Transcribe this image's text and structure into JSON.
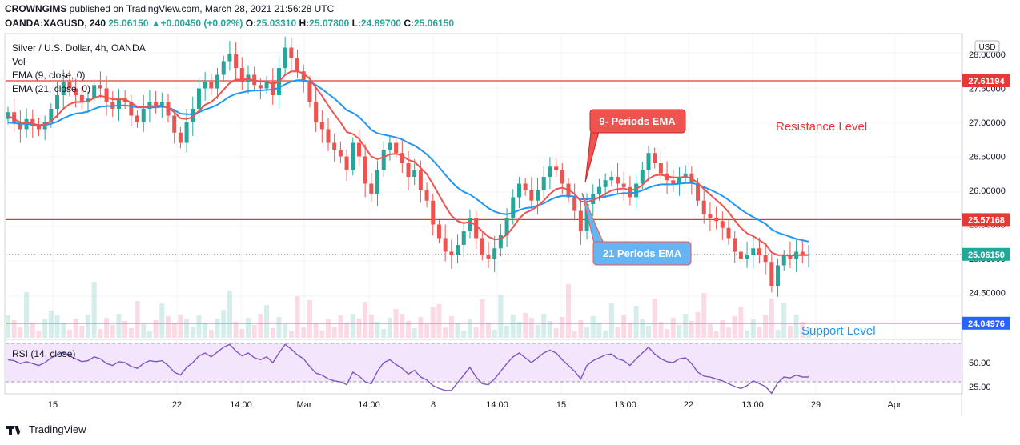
{
  "header": {
    "publisher": "CROWNGIMS",
    "published_text": "published on TradingView.com, March 28, 2021 21:56:28 UTC",
    "symbol": "OANDA:XAGUSD, 240",
    "last": "25.06150",
    "change": "▲+0.00450 (+0.02%)",
    "o_label": "O:",
    "o": "25.03310",
    "h_label": "H:",
    "h": "25.07800",
    "l_label": "L:",
    "l": "24.89700",
    "c_label": "C:",
    "c": "25.06150"
  },
  "legend": {
    "title": "Silver / U.S. Dollar, 4h, OANDA",
    "vol": "Vol",
    "ema9": "EMA (9, close, 0)",
    "ema21": "EMA (21, close, 0)",
    "rsi": "RSI (14, close)"
  },
  "annotations": {
    "ema9_box": "9- Periods EMA",
    "ema21_box": "21 Periods EMA",
    "resistance": "Resistance Level",
    "support": "Support Level"
  },
  "price_badges": {
    "currency": "USD",
    "r1": "27.61194",
    "r2": "25.57168",
    "last": "25.06150",
    "s1": "24.04976"
  },
  "footer": {
    "brand": "TradingView"
  },
  "colors": {
    "bull": "#26a69a",
    "bear": "#ef5350",
    "ema9": "#ef5350",
    "ema21": "#2196f3",
    "level": "#e53935",
    "support": "#2962ff",
    "rsi": "#7e57c2",
    "rsi_band": "#f3e5fb"
  },
  "chart_data": {
    "type": "candlestick",
    "title": "Silver / U.S. Dollar, 4h, OANDA",
    "y_ticks": [
      "28.00000",
      "27.50000",
      "27.00000",
      "26.50000",
      "26.00000",
      "25.50000",
      "25.00000",
      "24.50000"
    ],
    "ylim": [
      24.0,
      28.2
    ],
    "x_ticks": [
      "15",
      "22",
      "14:00",
      "Mar",
      "14:00",
      "8",
      "14:00",
      "15",
      "13:00",
      "22",
      "13:00",
      "29",
      "Apr"
    ],
    "levels": {
      "resistance": [
        27.61194,
        25.57168
      ],
      "support": 24.04976,
      "last": 25.0615
    },
    "close": [
      27.15,
      27.0,
      26.9,
      27.05,
      26.95,
      26.9,
      27.0,
      27.2,
      27.4,
      27.6,
      27.5,
      27.4,
      27.3,
      27.35,
      27.55,
      27.5,
      27.3,
      27.2,
      27.35,
      27.3,
      27.1,
      27.0,
      27.2,
      27.3,
      27.25,
      27.3,
      27.1,
      26.85,
      26.7,
      27.0,
      27.2,
      27.5,
      27.6,
      27.5,
      27.7,
      27.9,
      28.0,
      27.8,
      27.6,
      27.7,
      27.55,
      27.5,
      27.6,
      27.4,
      27.8,
      28.1,
      27.95,
      27.75,
      27.6,
      27.3,
      27.0,
      26.9,
      26.7,
      26.6,
      26.5,
      26.3,
      26.7,
      26.5,
      26.1,
      25.95,
      26.3,
      26.6,
      26.7,
      26.55,
      26.4,
      26.2,
      26.3,
      26.0,
      25.85,
      25.5,
      25.3,
      25.1,
      25.05,
      25.2,
      25.4,
      25.6,
      25.3,
      25.05,
      25.0,
      25.15,
      25.35,
      25.6,
      25.9,
      26.1,
      26.0,
      25.85,
      26.0,
      26.2,
      26.35,
      26.3,
      26.1,
      25.9,
      25.7,
      25.4,
      25.8,
      25.95,
      26.05,
      26.15,
      26.2,
      26.1,
      26.05,
      25.9,
      26.1,
      26.3,
      26.55,
      26.4,
      26.25,
      26.15,
      26.1,
      26.2,
      26.25,
      26.1,
      25.85,
      25.65,
      25.6,
      25.55,
      25.45,
      25.3,
      25.1,
      25.0,
      25.05,
      25.15,
      25.05,
      24.95,
      24.6,
      24.9,
      25.05,
      25.0,
      25.1,
      25.05,
      25.06
    ],
    "ema9": [
      27.1,
      27.05,
      27.0,
      27.0,
      26.98,
      26.96,
      26.97,
      27.02,
      27.1,
      27.2,
      27.27,
      27.3,
      27.3,
      27.31,
      27.36,
      27.39,
      27.37,
      27.34,
      27.34,
      27.34,
      27.29,
      27.23,
      27.23,
      27.24,
      27.24,
      27.25,
      27.22,
      27.15,
      27.06,
      27.05,
      27.08,
      27.17,
      27.26,
      27.3,
      27.38,
      27.48,
      27.58,
      27.63,
      27.63,
      27.64,
      27.62,
      27.6,
      27.6,
      27.56,
      27.6,
      27.7,
      27.75,
      27.75,
      27.72,
      27.64,
      27.51,
      27.39,
      27.25,
      27.12,
      27.0,
      26.86,
      26.83,
      26.76,
      26.63,
      26.5,
      26.46,
      26.49,
      26.53,
      26.54,
      26.51,
      26.45,
      26.42,
      26.33,
      26.24,
      26.09,
      25.93,
      25.77,
      25.63,
      25.55,
      25.52,
      25.54,
      25.49,
      25.4,
      25.32,
      25.28,
      25.29,
      25.35,
      25.46,
      25.59,
      25.67,
      25.71,
      25.77,
      25.85,
      25.95,
      26.02,
      26.04,
      26.01,
      25.95,
      25.84,
      25.83,
      25.86,
      25.9,
      25.95,
      26.0,
      26.02,
      26.03,
      26.0,
      26.02,
      26.08,
      26.17,
      26.22,
      26.23,
      26.21,
      26.19,
      26.19,
      26.2,
      26.18,
      26.11,
      26.02,
      25.94,
      25.86,
      25.78,
      25.68,
      25.56,
      25.45,
      25.37,
      25.33,
      25.27,
      25.21,
      25.09,
      25.05,
      25.05,
      25.04,
      25.05,
      25.05,
      25.05
    ],
    "ema21": [
      27.0,
      26.99,
      26.98,
      26.98,
      26.97,
      26.96,
      26.96,
      26.98,
      27.01,
      27.06,
      27.1,
      27.13,
      27.14,
      27.16,
      27.2,
      27.23,
      27.24,
      27.24,
      27.25,
      27.25,
      27.24,
      27.22,
      27.22,
      27.22,
      27.22,
      27.23,
      27.22,
      27.18,
      27.13,
      27.12,
      27.12,
      27.15,
      27.19,
      27.22,
      27.26,
      27.32,
      27.38,
      27.42,
      27.44,
      27.46,
      27.47,
      27.47,
      27.48,
      27.48,
      27.51,
      27.56,
      27.6,
      27.62,
      27.62,
      27.6,
      27.55,
      27.49,
      27.42,
      27.35,
      27.27,
      27.18,
      27.14,
      27.08,
      26.99,
      26.89,
      26.84,
      26.82,
      26.8,
      26.78,
      26.75,
      26.7,
      26.66,
      26.6,
      26.53,
      26.44,
      26.34,
      26.23,
      26.13,
      26.04,
      25.98,
      25.94,
      25.88,
      25.81,
      25.74,
      25.69,
      25.66,
      25.65,
      25.67,
      25.71,
      25.74,
      25.75,
      25.78,
      25.81,
      25.86,
      25.9,
      25.92,
      25.92,
      25.91,
      25.87,
      25.87,
      25.88,
      25.89,
      25.91,
      25.93,
      25.95,
      25.96,
      25.96,
      25.97,
      26.0,
      26.04,
      26.07,
      26.09,
      26.09,
      26.09,
      26.1,
      26.11,
      26.11,
      26.09,
      26.05,
      26.01,
      25.97,
      25.92,
      25.86,
      25.79,
      25.72,
      25.66,
      25.61,
      25.56,
      25.51,
      25.43,
      25.38,
      25.35,
      25.32,
      25.29,
      25.27,
      25.25
    ],
    "rsi": [
      53,
      52,
      49,
      51,
      49,
      47,
      50,
      55,
      58,
      61,
      57,
      54,
      51,
      52,
      56,
      54,
      49,
      47,
      51,
      50,
      46,
      44,
      49,
      52,
      51,
      52,
      47,
      40,
      37,
      45,
      50,
      57,
      60,
      56,
      61,
      66,
      69,
      62,
      57,
      60,
      55,
      53,
      56,
      50,
      60,
      69,
      64,
      58,
      54,
      46,
      39,
      37,
      33,
      31,
      30,
      27,
      40,
      36,
      30,
      28,
      41,
      50,
      53,
      48,
      44,
      38,
      42,
      35,
      32,
      26,
      23,
      21,
      21,
      29,
      37,
      45,
      35,
      28,
      27,
      33,
      41,
      49,
      56,
      60,
      55,
      50,
      55,
      60,
      63,
      60,
      53,
      47,
      41,
      33,
      47,
      52,
      55,
      58,
      59,
      54,
      52,
      47,
      54,
      60,
      66,
      59,
      54,
      51,
      50,
      54,
      55,
      49,
      40,
      36,
      35,
      33,
      31,
      28,
      25,
      23,
      26,
      31,
      28,
      25,
      18,
      29,
      35,
      34,
      37,
      35,
      35
    ],
    "rsi_ticks": [
      "50.00",
      "25.00"
    ],
    "rsi_band": [
      30,
      70
    ]
  }
}
